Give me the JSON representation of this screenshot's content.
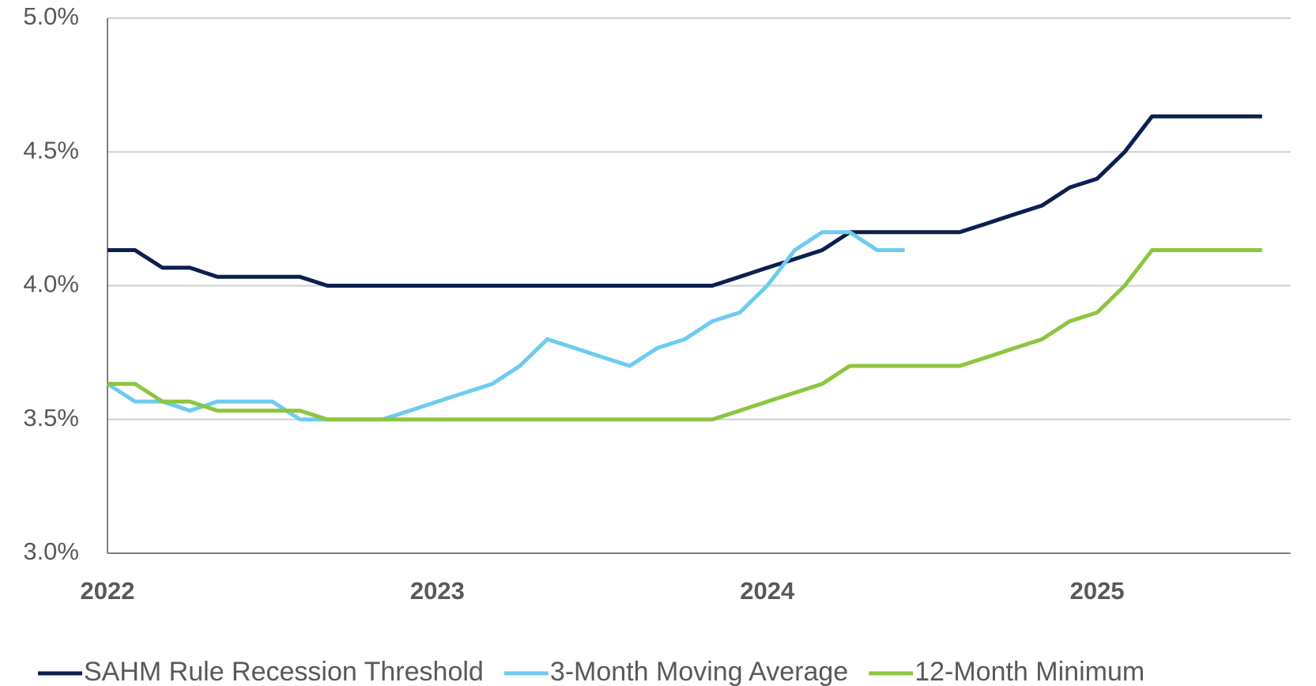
{
  "chart_data": {
    "type": "line",
    "categories": [
      "2022",
      null,
      null,
      null,
      null,
      null,
      null,
      null,
      null,
      null,
      null,
      null,
      "2023",
      null,
      null,
      null,
      null,
      null,
      null,
      null,
      null,
      null,
      null,
      null,
      "2024",
      null,
      null,
      null,
      null,
      null,
      null,
      null,
      null,
      null,
      null,
      null,
      "2025",
      null,
      null,
      null,
      null,
      null,
      null
    ],
    "series": [
      {
        "name": "SAHM Rule Recession Threshold",
        "color": "#0c1f4f",
        "values": [
          4.133,
          4.133,
          4.067,
          4.067,
          4.033,
          4.033,
          4.033,
          4.033,
          4.0,
          4.0,
          4.0,
          4.0,
          4.0,
          4.0,
          4.0,
          4.0,
          4.0,
          4.0,
          4.0,
          4.0,
          4.0,
          4.0,
          4.0,
          4.033,
          4.067,
          4.1,
          4.133,
          4.2,
          4.2,
          4.2,
          4.2,
          4.2,
          4.233,
          4.267,
          4.3,
          4.367,
          4.4,
          4.5,
          4.633,
          4.633,
          4.633,
          4.633,
          4.633
        ]
      },
      {
        "name": "3-Month Moving Average",
        "color": "#6ecbf0",
        "values": [
          3.633,
          3.567,
          3.567,
          3.533,
          3.567,
          3.567,
          3.567,
          3.5,
          3.5,
          3.5,
          3.5,
          3.533,
          3.567,
          3.6,
          3.633,
          3.7,
          3.8,
          3.767,
          3.733,
          3.7,
          3.767,
          3.8,
          3.867,
          3.9,
          4.0,
          4.133,
          4.2,
          4.2,
          4.133,
          4.133,
          null,
          null,
          null,
          null,
          null,
          null,
          null,
          null,
          null,
          null,
          null,
          null,
          null
        ]
      },
      {
        "name": "12-Month Minimum",
        "color": "#8cc63f",
        "values": [
          3.633,
          3.633,
          3.567,
          3.567,
          3.533,
          3.533,
          3.533,
          3.533,
          3.5,
          3.5,
          3.5,
          3.5,
          3.5,
          3.5,
          3.5,
          3.5,
          3.5,
          3.5,
          3.5,
          3.5,
          3.5,
          3.5,
          3.5,
          3.533,
          3.567,
          3.6,
          3.633,
          3.7,
          3.7,
          3.7,
          3.7,
          3.7,
          3.733,
          3.767,
          3.8,
          3.867,
          3.9,
          4.0,
          4.133,
          4.133,
          4.133,
          4.133,
          4.133
        ]
      }
    ],
    "ylim": [
      3.0,
      5.0
    ],
    "yticks": [
      {
        "value": 3.0,
        "label": "3.0%"
      },
      {
        "value": 3.5,
        "label": "3.5%"
      },
      {
        "value": 4.0,
        "label": "4.0%"
      },
      {
        "value": 4.5,
        "label": "4.5%"
      },
      {
        "value": 5.0,
        "label": "5.0%"
      }
    ],
    "grid": true,
    "legend": "bottom"
  }
}
